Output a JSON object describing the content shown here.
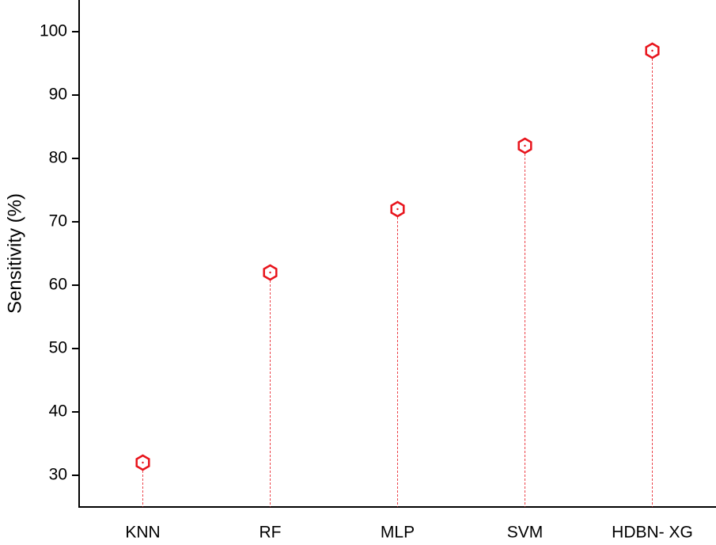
{
  "chart_data": {
    "type": "lollipop",
    "y_label": "Sensitivity (%)",
    "categories": [
      "KNN",
      "RF",
      "MLP",
      "SVM",
      "HDBN- XG"
    ],
    "values": [
      32,
      62,
      72,
      82,
      97
    ],
    "color": "#e8141c",
    "ylim": [
      25,
      105
    ],
    "yticks": [
      30,
      40,
      50,
      60,
      70,
      80,
      90,
      100
    ]
  }
}
